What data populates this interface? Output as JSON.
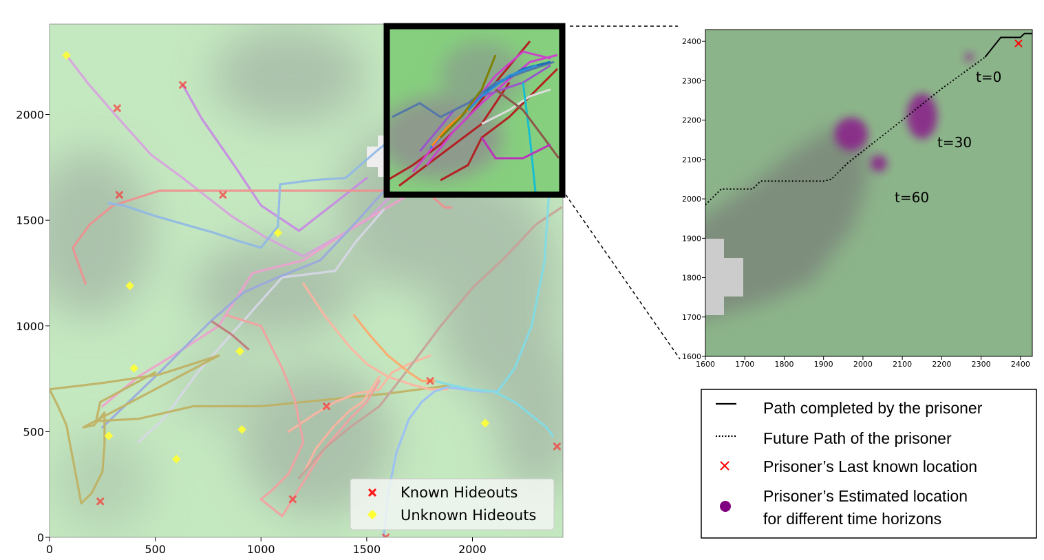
{
  "chart_data": [
    {
      "type": "line",
      "title": "",
      "xlabel": "",
      "ylabel": "",
      "xlim": [
        0,
        2428
      ],
      "ylim": [
        0,
        2428
      ],
      "xticks": [
        0,
        500,
        1000,
        1500,
        2000
      ],
      "yticks": [
        0,
        500,
        1000,
        1500,
        2000
      ],
      "grid": false,
      "legend_position": "bottom-right",
      "legend": [
        "Known Hideouts",
        "Unknown Hideouts"
      ],
      "known_hideouts": {
        "name": "Known Hideouts",
        "color": "#ff2a2a",
        "x": [
          320,
          630,
          330,
          820,
          240,
          1150,
          1310,
          1800,
          1590,
          2400
        ],
        "y": [
          2030,
          2140,
          1620,
          1620,
          170,
          180,
          620,
          740,
          0,
          430
        ]
      },
      "unknown_hideouts": {
        "name": "Unknown Hideouts",
        "color": "#ffff33",
        "x": [
          80,
          380,
          400,
          280,
          600,
          900,
          910,
          1080,
          2060
        ],
        "y": [
          2280,
          1190,
          800,
          480,
          370,
          880,
          510,
          1440,
          540
        ]
      },
      "paths": [
        {
          "color": "#d9a0e0",
          "x": [
            80,
            180,
            310,
            480,
            630,
            860,
            1020,
            1200,
            1500,
            1620
          ],
          "y": [
            2280,
            2150,
            2000,
            1810,
            1700,
            1520,
            1420,
            1330,
            1500,
            1620
          ]
        },
        {
          "color": "#c888e6",
          "x": [
            630,
            720,
            880,
            1000,
            1180,
            1500
          ],
          "y": [
            2140,
            1980,
            1750,
            1570,
            1450,
            1700
          ]
        },
        {
          "color": "#f09090",
          "x": [
            170,
            110,
            190,
            300,
            520,
            820,
            1200,
            1600,
            1800,
            1870,
            1900
          ],
          "y": [
            1200,
            1370,
            1480,
            1570,
            1640,
            1640,
            1640,
            1640,
            1620,
            1560,
            1560
          ]
        },
        {
          "color": "#90b8e8",
          "x": [
            280,
            350,
            500,
            640,
            780,
            900,
            1000,
            1080,
            1090,
            1250,
            1400,
            1550,
            1700
          ],
          "y": [
            1580,
            1570,
            1520,
            1480,
            1440,
            1400,
            1370,
            1470,
            1670,
            1690,
            1700,
            1830,
            1950
          ]
        },
        {
          "color": "#f0a0d0",
          "x": [
            250,
            420,
            600,
            800,
            960,
            1200,
            1460,
            1700
          ],
          "y": [
            620,
            760,
            870,
            1000,
            1250,
            1310,
            1480,
            1620
          ]
        },
        {
          "color": "#d8d8e8",
          "x": [
            420,
            540,
            700,
            1100,
            1350,
            1450,
            1580
          ],
          "y": [
            450,
            560,
            780,
            1230,
            1260,
            1400,
            1550
          ]
        },
        {
          "color": "#9aa8e0",
          "x": [
            250,
            520,
            760,
            920,
            1080,
            1280,
            1440,
            1620
          ],
          "y": [
            520,
            780,
            1020,
            1160,
            1230,
            1310,
            1480,
            1680
          ]
        },
        {
          "color": "#c0b060",
          "x": [
            0,
            250,
            520,
            800,
            160,
            210,
            260,
            260,
            250,
            230,
            200,
            150,
            80,
            40,
            0
          ],
          "y": [
            700,
            730,
            770,
            860,
            520,
            530,
            590,
            440,
            310,
            270,
            210,
            160,
            530,
            620,
            700
          ]
        },
        {
          "color": "#c0b060",
          "x": [
            500,
            240,
            220,
            420,
            680,
            1000,
            1300,
            1600,
            1900
          ],
          "y": [
            780,
            640,
            550,
            560,
            620,
            620,
            650,
            680,
            720
          ]
        },
        {
          "color": "#ffb4a0",
          "x": [
            1200,
            1300,
            1420,
            1500,
            1600,
            1720,
            1800,
            1880
          ],
          "y": [
            1200,
            1050,
            900,
            820,
            760,
            720,
            700,
            700
          ]
        },
        {
          "color": "#ffb4a0",
          "x": [
            1130,
            1250,
            1350,
            1450,
            1560,
            1620,
            1700,
            1800
          ],
          "y": [
            500,
            580,
            640,
            680,
            700,
            780,
            820,
            860
          ]
        },
        {
          "color": "#ffb4a0",
          "x": [
            1200,
            1260,
            1340,
            1420,
            1480,
            1520,
            1560
          ],
          "y": [
            300,
            420,
            520,
            600,
            640,
            700,
            760
          ]
        },
        {
          "color": "#f5a0a0",
          "x": [
            840,
            1000,
            1100,
            1160,
            1200,
            1130,
            1050,
            1000
          ],
          "y": [
            1050,
            1000,
            800,
            650,
            450,
            300,
            220,
            180
          ]
        },
        {
          "color": "#f5a0a0",
          "x": [
            1000,
            1100,
            1200,
            1300,
            1420,
            1500,
            1560
          ],
          "y": [
            180,
            100,
            260,
            420,
            560,
            640,
            740
          ]
        },
        {
          "color": "#c8a098",
          "x": [
            1180,
            1300,
            1420,
            1560,
            1700,
            1850,
            2000,
            2150,
            2300,
            2420
          ],
          "y": [
            280,
            420,
            520,
            620,
            800,
            1000,
            1180,
            1320,
            1480,
            1560
          ]
        },
        {
          "color": "#9ac0f8",
          "x": [
            1580,
            1600,
            1640,
            1700,
            1760,
            1820,
            1880,
            1960,
            2040,
            2120
          ],
          "y": [
            0,
            200,
            400,
            560,
            640,
            690,
            710,
            700,
            690,
            690
          ]
        },
        {
          "color": "#80dde8",
          "x": [
            1820,
            1900,
            2000,
            2100,
            2200,
            2300,
            2350,
            2380
          ],
          "y": [
            740,
            720,
            700,
            690,
            640,
            560,
            520,
            480
          ]
        },
        {
          "color": "#80dde8",
          "x": [
            2120,
            2200,
            2280,
            2340,
            2360,
            2380
          ],
          "y": [
            690,
            800,
            1000,
            1300,
            1600,
            1900
          ]
        },
        {
          "color": "#ffa868",
          "x": [
            1440,
            1520,
            1600,
            1700,
            1760,
            1820
          ],
          "y": [
            1050,
            950,
            860,
            780,
            740,
            740
          ]
        },
        {
          "color": "#c07878",
          "x": [
            770,
            860,
            940
          ],
          "y": [
            1020,
            960,
            890
          ]
        }
      ]
    },
    {
      "type": "heatmap",
      "title": "",
      "xlabel": "",
      "ylabel": "",
      "xlim": [
        1600,
        2430
      ],
      "ylim": [
        1600,
        2430
      ],
      "xticks": [
        1600,
        1700,
        1800,
        1900,
        2000,
        2100,
        2200,
        2300,
        2400
      ],
      "yticks": [
        1600,
        1700,
        1800,
        1900,
        2000,
        2100,
        2200,
        2300,
        2400
      ],
      "grid": false,
      "completed_path": {
        "name": "Path completed by the prisoner",
        "x": [
          2310,
          2350,
          2400,
          2410,
          2430
        ],
        "y": [
          2360,
          2410,
          2410,
          2420,
          2420
        ]
      },
      "future_path": {
        "name": "Future Path of the prisoner",
        "x": [
          1600,
          1640,
          1720,
          1740,
          1900,
          1920,
          1960,
          2100,
          2200,
          2310
        ],
        "y": [
          1985,
          2025,
          2025,
          2045,
          2045,
          2050,
          2090,
          2200,
          2280,
          2360
        ]
      },
      "last_known_location": {
        "name": "Prisoner’s Last known location",
        "x": 2395,
        "y": 2395
      },
      "estimated_locations": [
        {
          "label": "t=0",
          "x": 2270,
          "y": 2360
        },
        {
          "label": "t=30",
          "x": 2150,
          "y": 2210
        },
        {
          "label": "t=60",
          "x": 1970,
          "y": 2165
        },
        {
          "label": "",
          "x": 2040,
          "y": 2090
        }
      ],
      "annotations": [
        "t=0",
        "t=30",
        "t=60"
      ]
    }
  ],
  "legend_box": {
    "items": [
      {
        "label": "Path completed by the prisoner",
        "marker": "solid-line"
      },
      {
        "label": "Future Path of the prisoner",
        "marker": "dotted-line"
      },
      {
        "label": "Prisoner’s Last known location",
        "marker": "red-x"
      },
      {
        "label": "Prisoner’s Estimated location",
        "label2": "for different time horizons",
        "marker": "purple-dot"
      }
    ]
  },
  "colors": {
    "known_hideout": "#ff2a2a",
    "unknown_hideout": "#ffff33",
    "estimate": "#800080",
    "inset_frame": "#000000"
  }
}
